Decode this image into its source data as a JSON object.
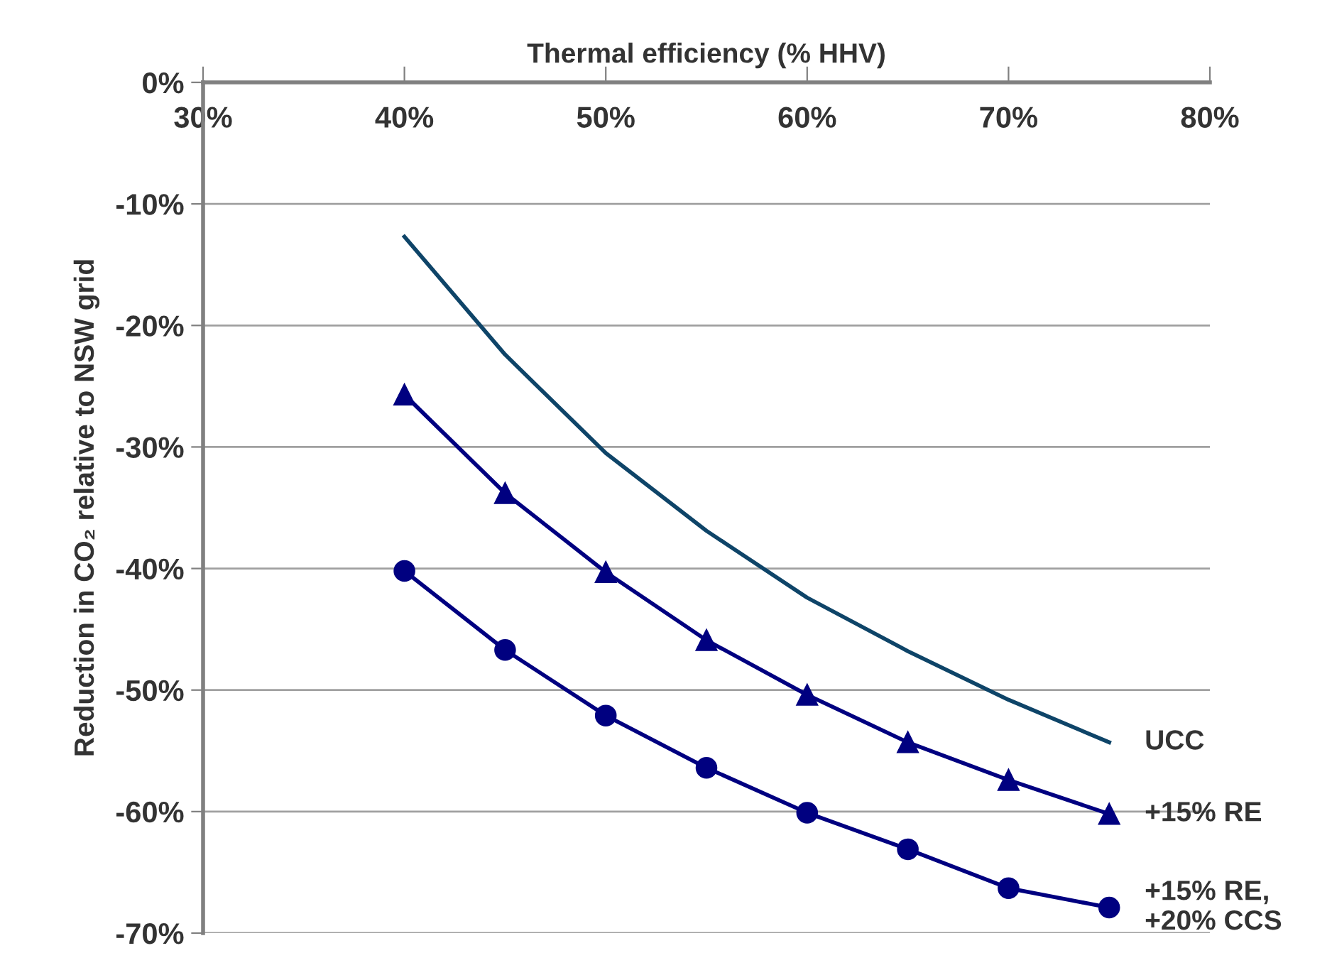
{
  "chart_data": {
    "type": "line",
    "xlabel": "Thermal efficiency (% HHV)",
    "ylabel": "Reduction in CO₂ relative to NSW grid",
    "x": [
      40,
      45,
      50,
      55,
      60,
      65,
      70,
      75
    ],
    "series": [
      {
        "name": "UCC",
        "color": "#0e4468",
        "marker": "none",
        "values": [
          -12.7,
          -22.4,
          -30.5,
          -36.9,
          -42.4,
          -46.8,
          -50.8,
          -54.3
        ]
      },
      {
        "name": "+15% RE",
        "color": "#000080",
        "marker": "triangle",
        "values": [
          -25.7,
          -33.8,
          -40.3,
          -45.9,
          -50.4,
          -54.3,
          -57.4,
          -60.2
        ]
      },
      {
        "name": "+15% RE,\n+20% CCS",
        "color": "#000080",
        "marker": "circle",
        "values": [
          -40.2,
          -46.7,
          -52.1,
          -56.4,
          -60.1,
          -63.1,
          -66.3,
          -67.9
        ]
      }
    ],
    "xlim": [
      30,
      80
    ],
    "xticks": [
      {
        "value": 30,
        "label": "30%"
      },
      {
        "value": 40,
        "label": "40%"
      },
      {
        "value": 50,
        "label": "50%"
      },
      {
        "value": 60,
        "label": "60%"
      },
      {
        "value": 70,
        "label": "70%"
      },
      {
        "value": 80,
        "label": "80%"
      }
    ],
    "ylim": [
      -70,
      0
    ],
    "yticks": [
      {
        "value": 0,
        "label": "0%"
      },
      {
        "value": -10,
        "label": "-10%"
      },
      {
        "value": -20,
        "label": "-20%"
      },
      {
        "value": -30,
        "label": "-30%"
      },
      {
        "value": -40,
        "label": "-40%"
      },
      {
        "value": -50,
        "label": "-50%"
      },
      {
        "value": -60,
        "label": "-60%"
      },
      {
        "value": -70,
        "label": "-70%"
      }
    ],
    "grid": "y",
    "legend": false
  }
}
